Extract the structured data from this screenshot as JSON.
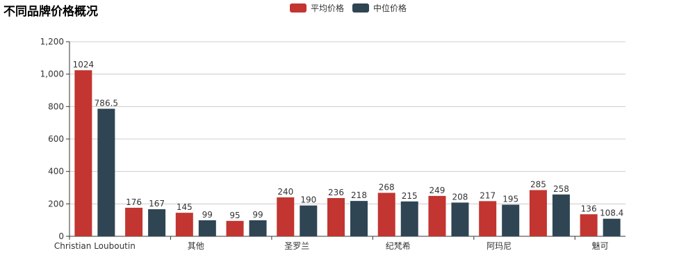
{
  "colors": {
    "avg": "#c23531",
    "median": "#2f4554"
  },
  "chart_data": {
    "type": "bar",
    "title": "不同品牌价格概况",
    "categories": [
      "Christian Louboutin",
      "",
      "其他",
      "",
      "圣罗兰",
      "",
      "纪梵希",
      "",
      "阿玛尼",
      "",
      "魅可"
    ],
    "series": [
      {
        "name": "平均价格",
        "values": [
          1024,
          176,
          145,
          95,
          240,
          236,
          268,
          249,
          217,
          285,
          136
        ]
      },
      {
        "name": "中位价格",
        "values": [
          786.5,
          167,
          99,
          99,
          190,
          218,
          215,
          208,
          195,
          258,
          108.4
        ]
      }
    ],
    "data_labels": {
      "平均价格": [
        "1024",
        "176",
        "145",
        "95",
        "240",
        "236",
        "268",
        "249",
        "217",
        "285",
        "136"
      ],
      "中位价格": [
        "786.5",
        "167",
        "99",
        "99",
        "190",
        "218",
        "215",
        "208",
        "195",
        "258",
        "108.4"
      ]
    },
    "yticks": [
      "0",
      "200",
      "400",
      "600",
      "800",
      "1,000",
      "1,200"
    ],
    "ylim": [
      0,
      1200
    ],
    "grid": true,
    "legend_position": "top"
  }
}
